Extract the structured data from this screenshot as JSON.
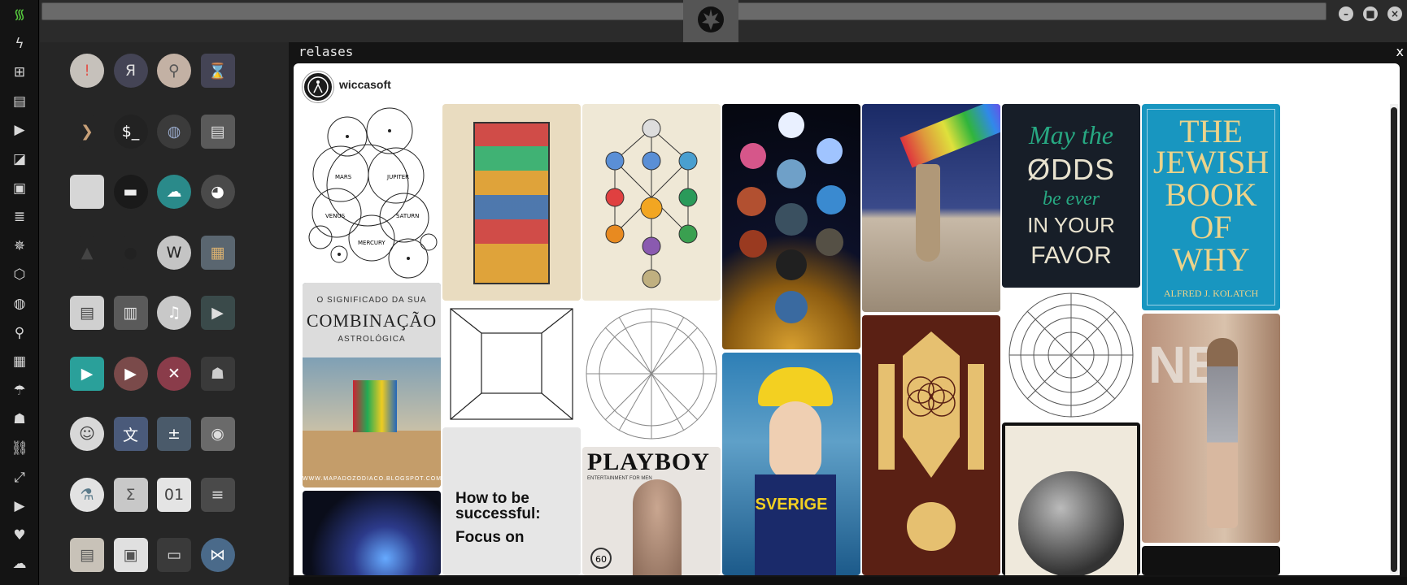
{
  "window": {
    "minimize_icon": "–",
    "maximize_icon": "■",
    "close_icon": "×",
    "logo": "rebel-alliance-logo"
  },
  "panel": {
    "title": "relases",
    "close_label": "x"
  },
  "profile": {
    "name": "wiccasoft"
  },
  "dock_icons": [
    "wifi-icon",
    "lightning-icon",
    "windows-icon",
    "archive-icon",
    "play-icon",
    "map-icon",
    "image-icon",
    "news-icon",
    "sheriff-star-icon",
    "hexagon-icon",
    "globe-icon",
    "search-icon",
    "map-fold-icon",
    "umbrella-icon",
    "contact-icon",
    "link-icon",
    "fullscreen-icon",
    "youtube-icon",
    "heart-icon",
    "cloud-icon"
  ],
  "apps": [
    {
      "name": "warning-app-icon",
      "glyph": "!"
    },
    {
      "name": "yandex-app-icon",
      "glyph": "Я"
    },
    {
      "name": "search-app-icon",
      "glyph": "⚲"
    },
    {
      "name": "hourglass-app-icon",
      "glyph": "⌛"
    },
    {
      "name": "terminal-arrow-app-icon",
      "glyph": "❯"
    },
    {
      "name": "console-app-icon",
      "glyph": "$_"
    },
    {
      "name": "globe-app-icon",
      "glyph": "◍"
    },
    {
      "name": "file-cabinet-app-icon",
      "glyph": "▤"
    },
    {
      "name": "window-app-icon",
      "glyph": ""
    },
    {
      "name": "bed-app-icon",
      "glyph": "▬"
    },
    {
      "name": "cloud-app-icon",
      "glyph": "☁"
    },
    {
      "name": "github-app-icon",
      "glyph": "◕"
    },
    {
      "name": "starfleet-app-icon",
      "glyph": "▲"
    },
    {
      "name": "death-star-app-icon",
      "glyph": "●"
    },
    {
      "name": "wikipedia-app-icon",
      "glyph": "W"
    },
    {
      "name": "world-map-app-icon",
      "glyph": "▦"
    },
    {
      "name": "documents-app-icon",
      "glyph": "▤"
    },
    {
      "name": "notebook-app-icon",
      "glyph": "▥"
    },
    {
      "name": "music-app-icon",
      "glyph": "♫"
    },
    {
      "name": "video-app-icon",
      "glyph": "▶"
    },
    {
      "name": "play-app-icon",
      "glyph": "▶"
    },
    {
      "name": "youtube-app-icon",
      "glyph": "▶"
    },
    {
      "name": "close-app-icon",
      "glyph": "✕"
    },
    {
      "name": "robot-app-icon",
      "glyph": "☗"
    },
    {
      "name": "c3po-app-icon",
      "glyph": "☺"
    },
    {
      "name": "translate-app-icon",
      "glyph": "文"
    },
    {
      "name": "calculator-app-icon",
      "glyph": "±"
    },
    {
      "name": "camera-app-icon",
      "glyph": "◉"
    },
    {
      "name": "flask-app-icon",
      "glyph": "⚗"
    },
    {
      "name": "sigma-app-icon",
      "glyph": "Σ"
    },
    {
      "name": "binary-file-app-icon",
      "glyph": "01"
    },
    {
      "name": "document-lines-app-icon",
      "glyph": "≡"
    },
    {
      "name": "text-file-app-icon",
      "glyph": "▤"
    },
    {
      "name": "picture-app-icon",
      "glyph": "▣"
    },
    {
      "name": "presentation-app-icon",
      "glyph": "▭"
    },
    {
      "name": "vscode-app-icon",
      "glyph": "⋈"
    }
  ],
  "pins": {
    "planets_labels": [
      "MARS",
      "JUPITER",
      "VENUS",
      "SATURN",
      "MERCURY"
    ],
    "combinacao": {
      "line1": "O SIGNIFICADO DA SUA",
      "line2": "COMBINAÇÃO",
      "line3": "ASTROLÓGICA",
      "footer": "WWW.MAPADOZODIACO.BLOGSPOT.COM"
    },
    "success": {
      "line1": "How to be",
      "line2": "successful:",
      "line3": "Focus on"
    },
    "playboy": {
      "masthead": "PLAYBOY",
      "tagline": "ENTERTAINMENT FOR MEN",
      "badge": "60"
    },
    "odds": {
      "line1": "May the",
      "line2": "ØDDS",
      "line3": "be ever",
      "line4": "IN YOUR",
      "line5": "FAVOR"
    },
    "jewish": {
      "line1": "THE",
      "line2": "JEWISH",
      "line3": "BOOK",
      "line4": "OF",
      "line5": "WHY",
      "author": "ALFRED J. KOLATCH"
    },
    "sverige": "SVERIGE",
    "ne_letters": "NE"
  }
}
